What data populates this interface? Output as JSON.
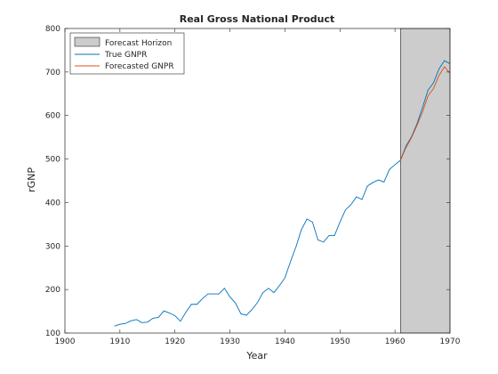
{
  "chart_data": {
    "type": "line",
    "title": "Real Gross National Product",
    "xlabel": "Year",
    "ylabel": "rGNP",
    "xlim": [
      1900,
      1970
    ],
    "ylim": [
      100,
      800
    ],
    "xticks": [
      1900,
      1910,
      1920,
      1930,
      1940,
      1950,
      1960,
      1970
    ],
    "yticks": [
      100,
      200,
      300,
      400,
      500,
      600,
      700,
      800
    ],
    "grid": false,
    "legend_position": "top-left",
    "forecast_horizon": {
      "name": "Forecast Horizon",
      "x_start": 1961,
      "x_end": 1970,
      "color": "#cccccc"
    },
    "series": [
      {
        "name": "True GNPR",
        "color": "#0072bd",
        "x": [
          1909,
          1910,
          1911,
          1912,
          1913,
          1914,
          1915,
          1916,
          1917,
          1918,
          1919,
          1920,
          1921,
          1922,
          1923,
          1924,
          1925,
          1926,
          1927,
          1928,
          1929,
          1930,
          1931,
          1932,
          1933,
          1934,
          1935,
          1936,
          1937,
          1938,
          1939,
          1940,
          1941,
          1942,
          1943,
          1944,
          1945,
          1946,
          1947,
          1948,
          1949,
          1950,
          1951,
          1952,
          1953,
          1954,
          1955,
          1956,
          1957,
          1958,
          1959,
          1960,
          1961,
          1962,
          1963,
          1964,
          1965,
          1966,
          1967,
          1968,
          1969,
          1970
        ],
        "values": [
          116,
          120,
          122,
          128,
          131,
          124,
          125,
          134,
          136,
          151,
          146,
          140,
          127,
          148,
          166,
          166,
          179,
          190,
          190,
          190,
          203,
          183,
          169,
          144,
          141,
          154,
          170,
          193,
          203,
          193,
          209,
          227,
          264,
          298,
          338,
          362,
          355,
          314,
          309,
          324,
          324,
          355,
          383,
          395,
          413,
          407,
          438,
          446,
          452,
          447,
          476,
          487,
          497,
          530,
          551,
          581,
          618,
          658,
          675,
          707,
          726,
          719
        ]
      },
      {
        "name": "Forecasted GNPR",
        "color": "#d95319",
        "x": [
          1961,
          1962,
          1963,
          1964,
          1965,
          1966,
          1967,
          1968,
          1969,
          1970
        ],
        "values": [
          497,
          526,
          549,
          577,
          608,
          645,
          662,
          692,
          712,
          697
        ]
      }
    ]
  }
}
